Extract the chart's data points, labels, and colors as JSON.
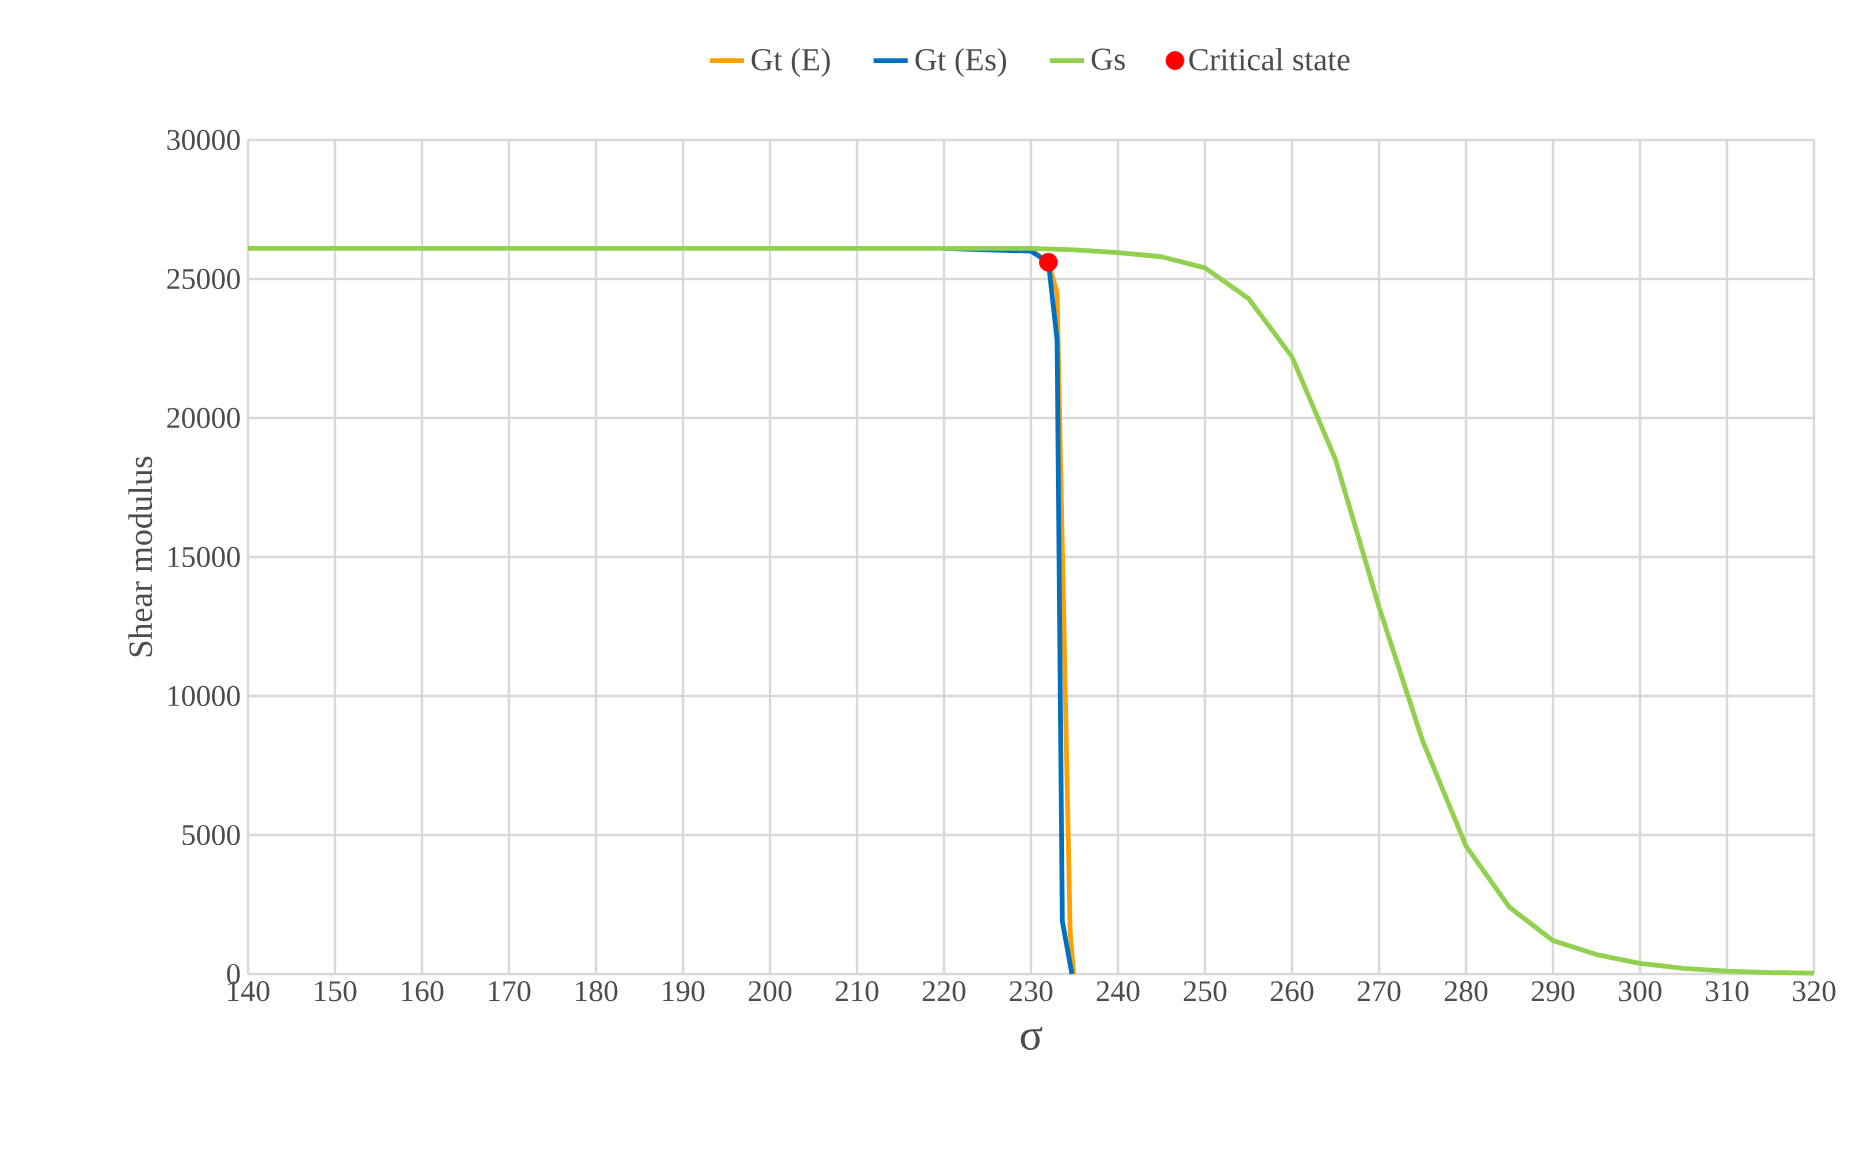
{
  "chart_data": {
    "type": "line",
    "xlabel": "σ",
    "ylabel": "Shear modulus",
    "xlim": [
      140,
      320
    ],
    "xticks": [
      140,
      150,
      160,
      170,
      180,
      190,
      200,
      210,
      220,
      230,
      240,
      250,
      260,
      270,
      280,
      290,
      300,
      310,
      320
    ],
    "ylim": [
      0,
      30000
    ],
    "yticks": [
      0,
      5000,
      10000,
      15000,
      20000,
      25000,
      30000
    ],
    "grid": true,
    "legend": "top",
    "line_style": "solid",
    "series": [
      {
        "name": "Gt (E)",
        "color": "#ffa000",
        "x": [
          220,
          230,
          232,
          233,
          234.5,
          234.9
        ],
        "values": [
          26100,
          26050,
          25600,
          24500,
          1500,
          0
        ]
      },
      {
        "name": "Gt (Es)",
        "color": "#0070c0",
        "x": [
          220,
          230,
          232,
          233,
          233.6,
          234.7
        ],
        "values": [
          26100,
          26000,
          25600,
          22800,
          1900,
          0
        ]
      },
      {
        "name": "Gs",
        "color": "#92d050",
        "x": [
          140,
          150,
          160,
          170,
          180,
          190,
          200,
          210,
          220,
          230,
          235,
          240,
          245,
          250,
          255,
          260,
          265,
          270,
          275,
          280,
          285,
          290,
          295,
          300,
          305,
          310,
          315,
          320
        ],
        "values": [
          26100,
          26100,
          26100,
          26100,
          26100,
          26100,
          26100,
          26100,
          26100,
          26100,
          26050,
          25950,
          25800,
          25400,
          24300,
          22200,
          18500,
          13200,
          8400,
          4600,
          2400,
          1200,
          700,
          380,
          200,
          100,
          50,
          30
        ]
      },
      {
        "name": "Critical state",
        "type": "scatter",
        "color": "#ff0000",
        "x": [
          232
        ],
        "values": [
          25600
        ]
      }
    ]
  }
}
